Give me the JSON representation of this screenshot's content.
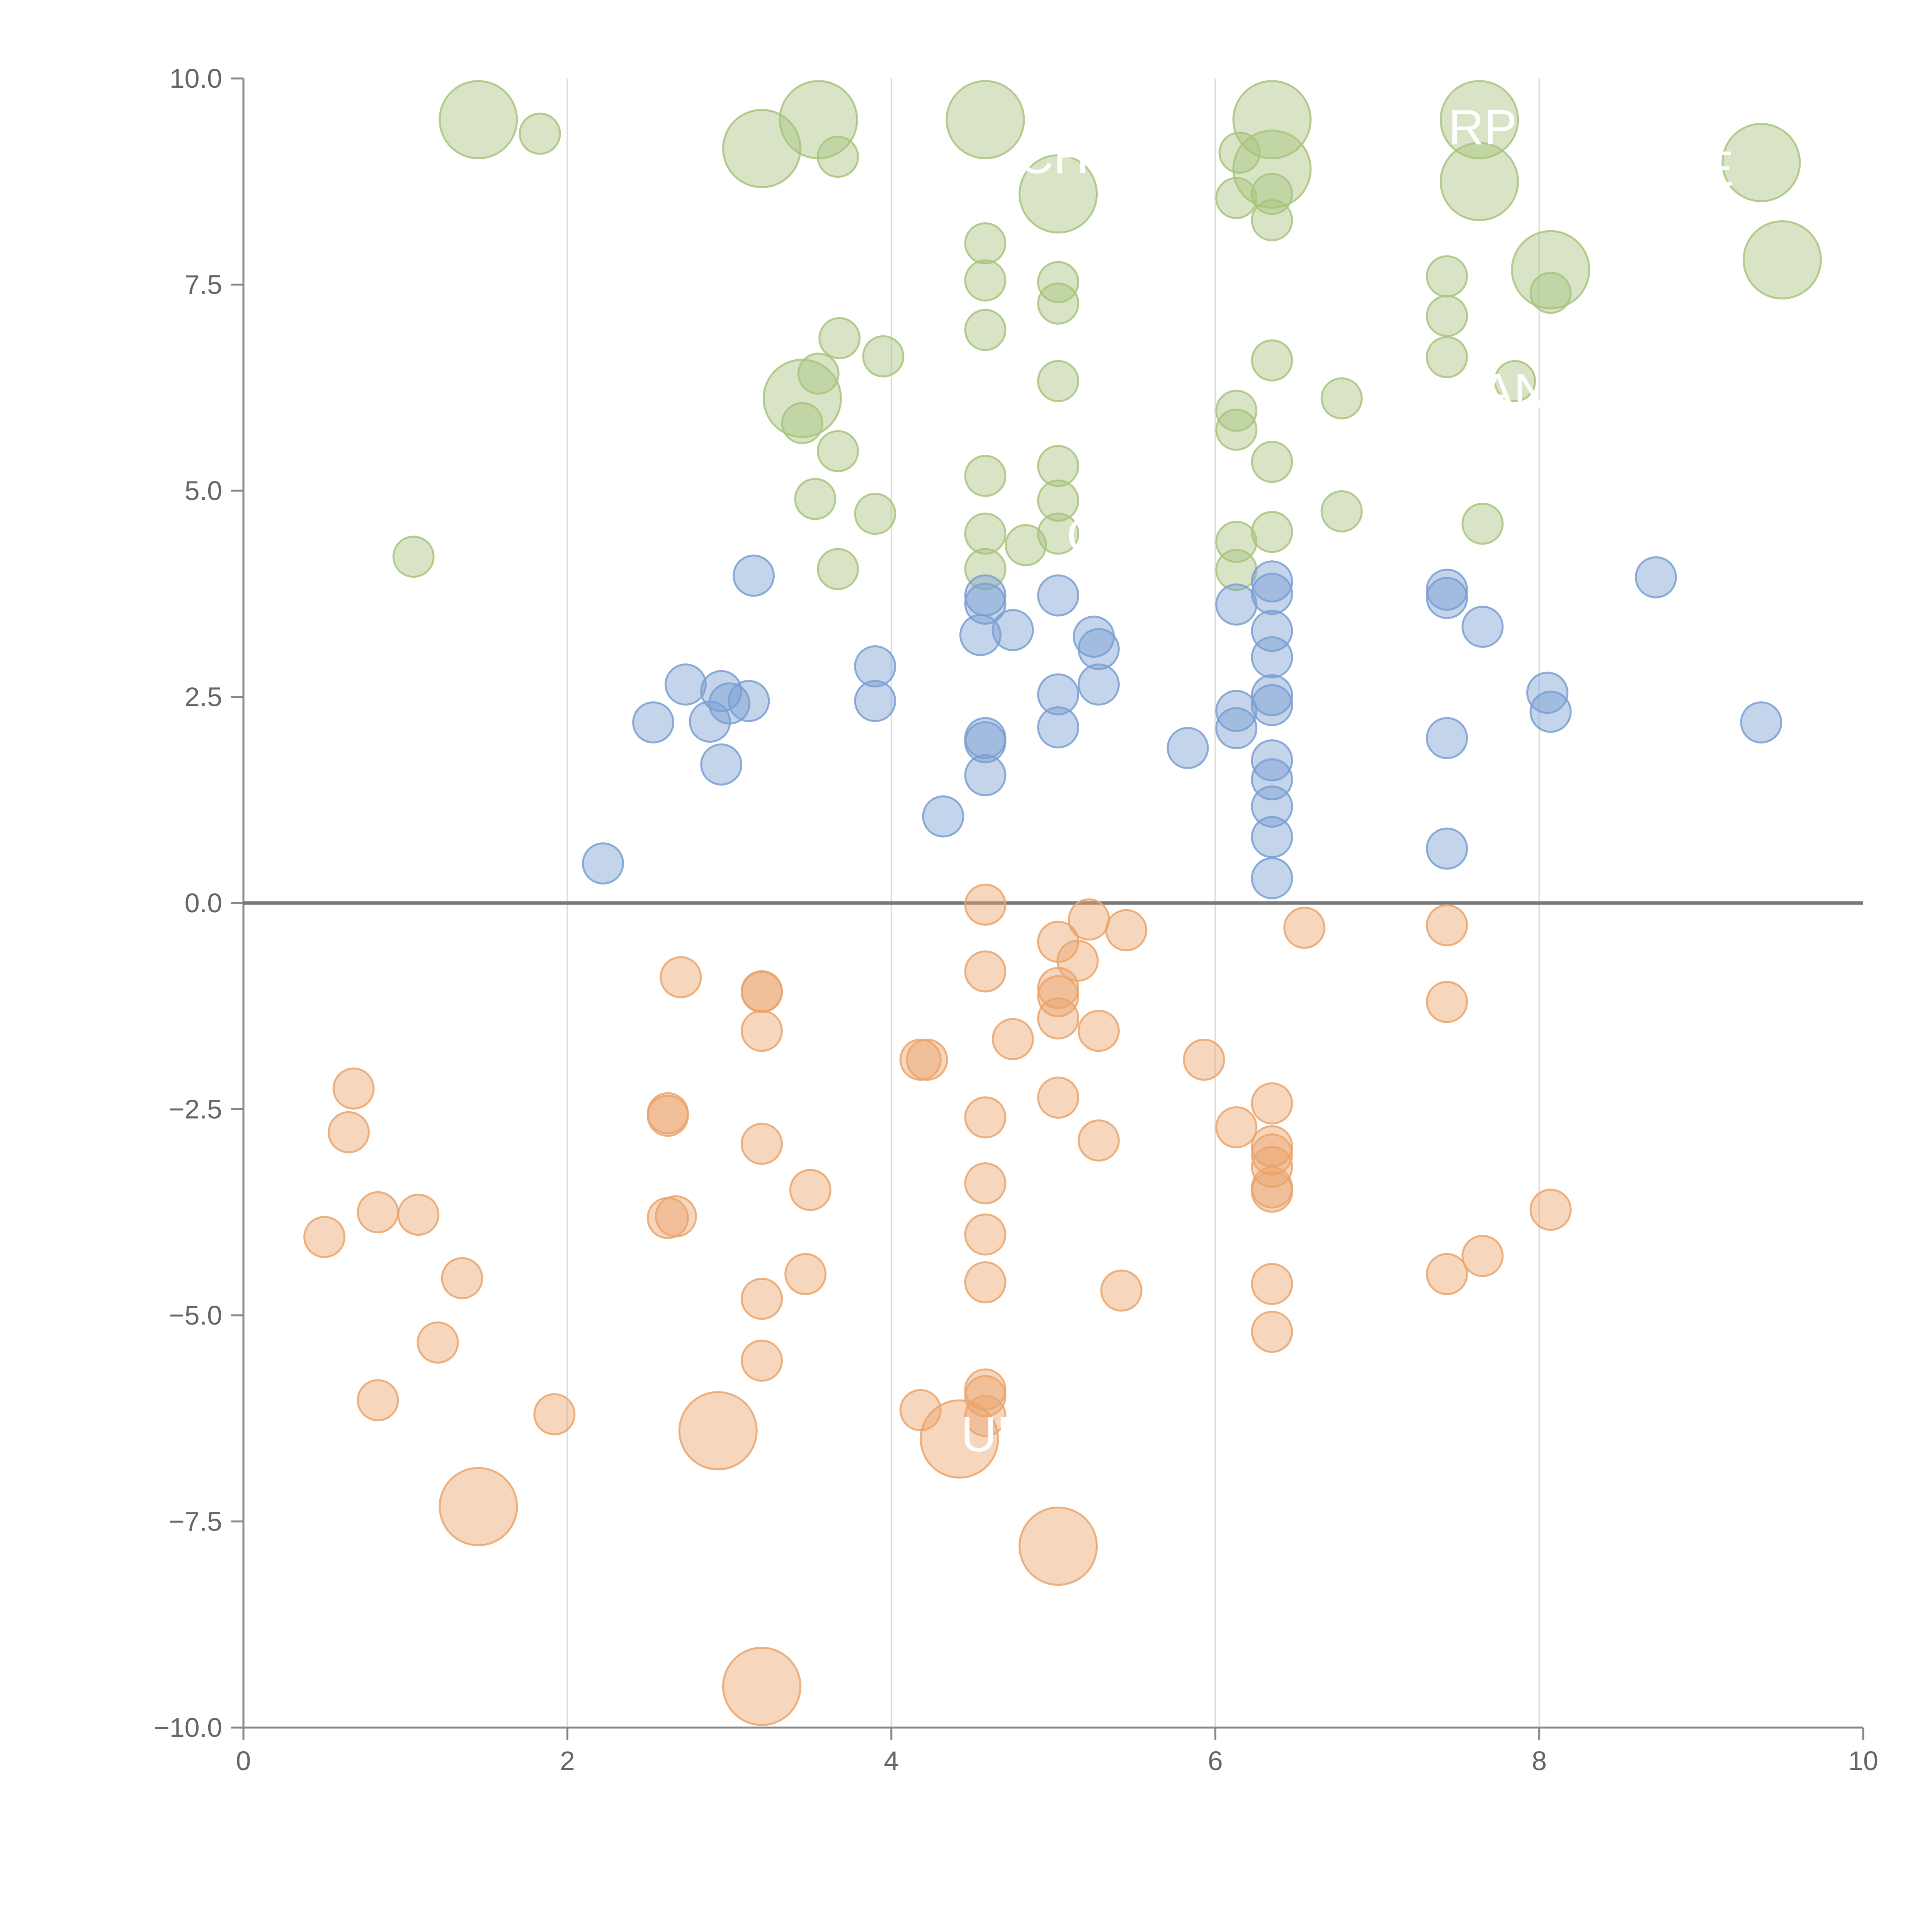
{
  "chart_data": {
    "type": "scatter",
    "title": "",
    "xlabel": "",
    "ylabel": "",
    "xlim": [
      0,
      10
    ],
    "ylim": [
      -10,
      10
    ],
    "x_ticks": [
      0,
      2,
      4,
      6,
      8,
      10
    ],
    "y_ticks": [
      -10,
      -7.5,
      -5,
      -2.5,
      0,
      2.5,
      5,
      7.5,
      10
    ],
    "x_tick_labels": [
      "0",
      "2",
      "4",
      "6",
      "8",
      "10"
    ],
    "y_tick_labels": [
      "−10.0",
      "−7.5",
      "−5.0",
      "−2.5",
      "0.0",
      "2.5",
      "5.0",
      "7.5",
      "10.0"
    ],
    "grid": "vertical",
    "zero_line": true,
    "bubble_opacity": 0.45,
    "series": [
      {
        "color": "#a8c47e",
        "points": [
          [
            1.45,
            9.5,
            2
          ],
          [
            1.83,
            9.33,
            1
          ],
          [
            3.2,
            9.15,
            2
          ],
          [
            3.55,
            9.5,
            2
          ],
          [
            3.67,
            9.05,
            1
          ],
          [
            4.58,
            9.5,
            2
          ],
          [
            5.03,
            8.6,
            2
          ],
          [
            6.15,
            9.1,
            1
          ],
          [
            6.35,
            9.5,
            2
          ],
          [
            6.35,
            8.9,
            2
          ],
          [
            6.35,
            8.6,
            1
          ],
          [
            6.35,
            8.28,
            1
          ],
          [
            6.13,
            8.55,
            1
          ],
          [
            7.63,
            9.5,
            2
          ],
          [
            7.63,
            8.75,
            2
          ],
          [
            9.37,
            8.98,
            2
          ],
          [
            9.5,
            7.8,
            2
          ],
          [
            8.07,
            7.68,
            2
          ],
          [
            8.07,
            7.4,
            1
          ],
          [
            7.43,
            7.6,
            1
          ],
          [
            7.43,
            7.12,
            1
          ],
          [
            7.43,
            6.62,
            1
          ],
          [
            7.85,
            6.33,
            1
          ],
          [
            6.78,
            6.12,
            1
          ],
          [
            6.35,
            6.58,
            1
          ],
          [
            6.13,
            5.97,
            1
          ],
          [
            6.13,
            5.74,
            1
          ],
          [
            6.35,
            5.35,
            1
          ],
          [
            6.35,
            4.5,
            1
          ],
          [
            6.13,
            4.38,
            1
          ],
          [
            6.13,
            4.04,
            1
          ],
          [
            6.78,
            4.75,
            1
          ],
          [
            7.65,
            4.6,
            1
          ],
          [
            4.58,
            8.0,
            1
          ],
          [
            4.58,
            7.55,
            1
          ],
          [
            4.58,
            6.95,
            1
          ],
          [
            5.03,
            7.53,
            1
          ],
          [
            5.03,
            7.27,
            1
          ],
          [
            5.03,
            6.33,
            1
          ],
          [
            5.03,
            5.3,
            1
          ],
          [
            5.03,
            4.88,
            1
          ],
          [
            5.03,
            4.48,
            1
          ],
          [
            4.83,
            4.34,
            1
          ],
          [
            4.58,
            5.18,
            1
          ],
          [
            4.58,
            4.48,
            1
          ],
          [
            4.58,
            4.05,
            1
          ],
          [
            3.45,
            6.12,
            2
          ],
          [
            3.55,
            6.42,
            1
          ],
          [
            3.45,
            5.82,
            1
          ],
          [
            3.68,
            6.85,
            1
          ],
          [
            3.95,
            6.63,
            1
          ],
          [
            3.67,
            5.48,
            1
          ],
          [
            3.53,
            4.9,
            1
          ],
          [
            3.9,
            4.72,
            1
          ],
          [
            3.67,
            4.05,
            1
          ],
          [
            1.05,
            4.2,
            1
          ]
        ]
      },
      {
        "color": "#7a9fd2",
        "points": [
          [
            2.22,
            0.48,
            1
          ],
          [
            2.53,
            2.19,
            1
          ],
          [
            2.73,
            2.65,
            1
          ],
          [
            2.88,
            2.2,
            1
          ],
          [
            2.95,
            2.57,
            1
          ],
          [
            3.0,
            2.42,
            1
          ],
          [
            3.12,
            2.45,
            1
          ],
          [
            2.95,
            1.68,
            1
          ],
          [
            3.15,
            3.97,
            1
          ],
          [
            3.9,
            2.87,
            1
          ],
          [
            3.9,
            2.45,
            1
          ],
          [
            4.32,
            1.05,
            1
          ],
          [
            4.58,
            3.73,
            1
          ],
          [
            4.58,
            3.63,
            1
          ],
          [
            4.55,
            3.25,
            1
          ],
          [
            4.75,
            3.31,
            1
          ],
          [
            4.58,
            2.0,
            1
          ],
          [
            4.58,
            1.95,
            1
          ],
          [
            4.58,
            1.55,
            1
          ],
          [
            5.03,
            3.73,
            1
          ],
          [
            5.03,
            2.53,
            1
          ],
          [
            5.03,
            2.13,
            1
          ],
          [
            5.25,
            3.23,
            1
          ],
          [
            5.28,
            3.08,
            1
          ],
          [
            5.28,
            2.65,
            1
          ],
          [
            5.83,
            1.88,
            1
          ],
          [
            6.13,
            3.62,
            1
          ],
          [
            6.13,
            2.33,
            1
          ],
          [
            6.13,
            2.12,
            1
          ],
          [
            6.35,
            3.9,
            1
          ],
          [
            6.35,
            3.75,
            1
          ],
          [
            6.35,
            3.3,
            1
          ],
          [
            6.35,
            2.98,
            1
          ],
          [
            6.35,
            2.52,
            1
          ],
          [
            6.35,
            2.4,
            1
          ],
          [
            6.35,
            1.73,
            1
          ],
          [
            6.35,
            1.5,
            1
          ],
          [
            6.35,
            1.17,
            1
          ],
          [
            6.35,
            0.8,
            1
          ],
          [
            6.35,
            0.3,
            1
          ],
          [
            7.43,
            3.8,
            1
          ],
          [
            7.43,
            3.7,
            1
          ],
          [
            7.65,
            3.35,
            1
          ],
          [
            7.43,
            2.0,
            1
          ],
          [
            7.43,
            0.66,
            1
          ],
          [
            8.05,
            2.55,
            1
          ],
          [
            8.07,
            2.32,
            1
          ],
          [
            8.72,
            3.95,
            1
          ],
          [
            9.37,
            2.19,
            1
          ]
        ]
      },
      {
        "color": "#eaa56c",
        "points": [
          [
            0.5,
            -4.05,
            1
          ],
          [
            0.65,
            -2.78,
            1
          ],
          [
            0.68,
            -2.25,
            1
          ],
          [
            0.83,
            -3.75,
            1
          ],
          [
            1.08,
            -3.78,
            1
          ],
          [
            1.35,
            -4.55,
            1
          ],
          [
            1.2,
            -5.33,
            1
          ],
          [
            0.83,
            -6.03,
            1
          ],
          [
            1.45,
            -7.32,
            2
          ],
          [
            1.92,
            -6.2,
            1
          ],
          [
            2.62,
            -2.55,
            1
          ],
          [
            2.62,
            -2.58,
            1
          ],
          [
            2.62,
            -3.82,
            1
          ],
          [
            2.67,
            -3.8,
            1
          ],
          [
            2.7,
            -0.9,
            1
          ],
          [
            2.93,
            -6.4,
            2
          ],
          [
            3.2,
            -1.07,
            1
          ],
          [
            3.2,
            -1.08,
            1
          ],
          [
            3.2,
            -1.55,
            1
          ],
          [
            3.2,
            -2.92,
            1
          ],
          [
            3.5,
            -3.48,
            1
          ],
          [
            3.47,
            -4.5,
            1
          ],
          [
            3.2,
            -4.8,
            1
          ],
          [
            3.2,
            -5.55,
            1
          ],
          [
            3.2,
            -9.5,
            2
          ],
          [
            4.18,
            -1.9,
            1
          ],
          [
            4.22,
            -1.9,
            1
          ],
          [
            4.18,
            -6.15,
            1
          ],
          [
            4.42,
            -6.5,
            2
          ],
          [
            4.58,
            -0.02,
            1
          ],
          [
            4.58,
            -0.83,
            1
          ],
          [
            4.58,
            -2.6,
            1
          ],
          [
            4.58,
            -3.4,
            1
          ],
          [
            4.58,
            -4.02,
            1
          ],
          [
            4.58,
            -4.6,
            1
          ],
          [
            4.58,
            -5.9,
            1
          ],
          [
            4.58,
            -5.98,
            1
          ],
          [
            4.58,
            -6.22,
            1
          ],
          [
            4.75,
            -1.65,
            1
          ],
          [
            5.03,
            -0.47,
            1
          ],
          [
            5.03,
            -1.03,
            1
          ],
          [
            5.03,
            -1.13,
            1
          ],
          [
            5.03,
            -1.4,
            1
          ],
          [
            5.03,
            -2.36,
            1
          ],
          [
            5.03,
            -7.8,
            2
          ],
          [
            5.15,
            -0.7,
            1
          ],
          [
            5.22,
            -0.2,
            1
          ],
          [
            5.45,
            -0.33,
            1
          ],
          [
            5.28,
            -1.55,
            1
          ],
          [
            5.28,
            -2.88,
            1
          ],
          [
            5.42,
            -4.7,
            1
          ],
          [
            5.93,
            -1.9,
            1
          ],
          [
            6.13,
            -2.72,
            1
          ],
          [
            6.35,
            -2.43,
            1
          ],
          [
            6.35,
            -2.95,
            1
          ],
          [
            6.35,
            -3.05,
            1
          ],
          [
            6.35,
            -3.2,
            1
          ],
          [
            6.35,
            -3.45,
            1
          ],
          [
            6.35,
            -3.5,
            1
          ],
          [
            6.35,
            -4.62,
            1
          ],
          [
            6.35,
            -5.2,
            1
          ],
          [
            6.55,
            -0.3,
            1
          ],
          [
            7.43,
            -0.27,
            1
          ],
          [
            7.43,
            -1.2,
            1
          ],
          [
            7.43,
            -4.5,
            1
          ],
          [
            7.65,
            -4.28,
            1
          ],
          [
            8.07,
            -3.72,
            1
          ]
        ]
      }
    ],
    "annotations": [
      {
        "x": 4.65,
        "y": -6.65,
        "text": "UN"
      },
      {
        "x": 5.0,
        "y": 8.85,
        "text": "CH"
      },
      {
        "x": 7.65,
        "y": 9.2,
        "text": "RP"
      },
      {
        "x": 9.1,
        "y": 8.7,
        "text": "E"
      },
      {
        "x": 7.85,
        "y": 6.0,
        "text": "AN"
      },
      {
        "x": 5.2,
        "y": 4.25,
        "text": "G"
      }
    ]
  }
}
